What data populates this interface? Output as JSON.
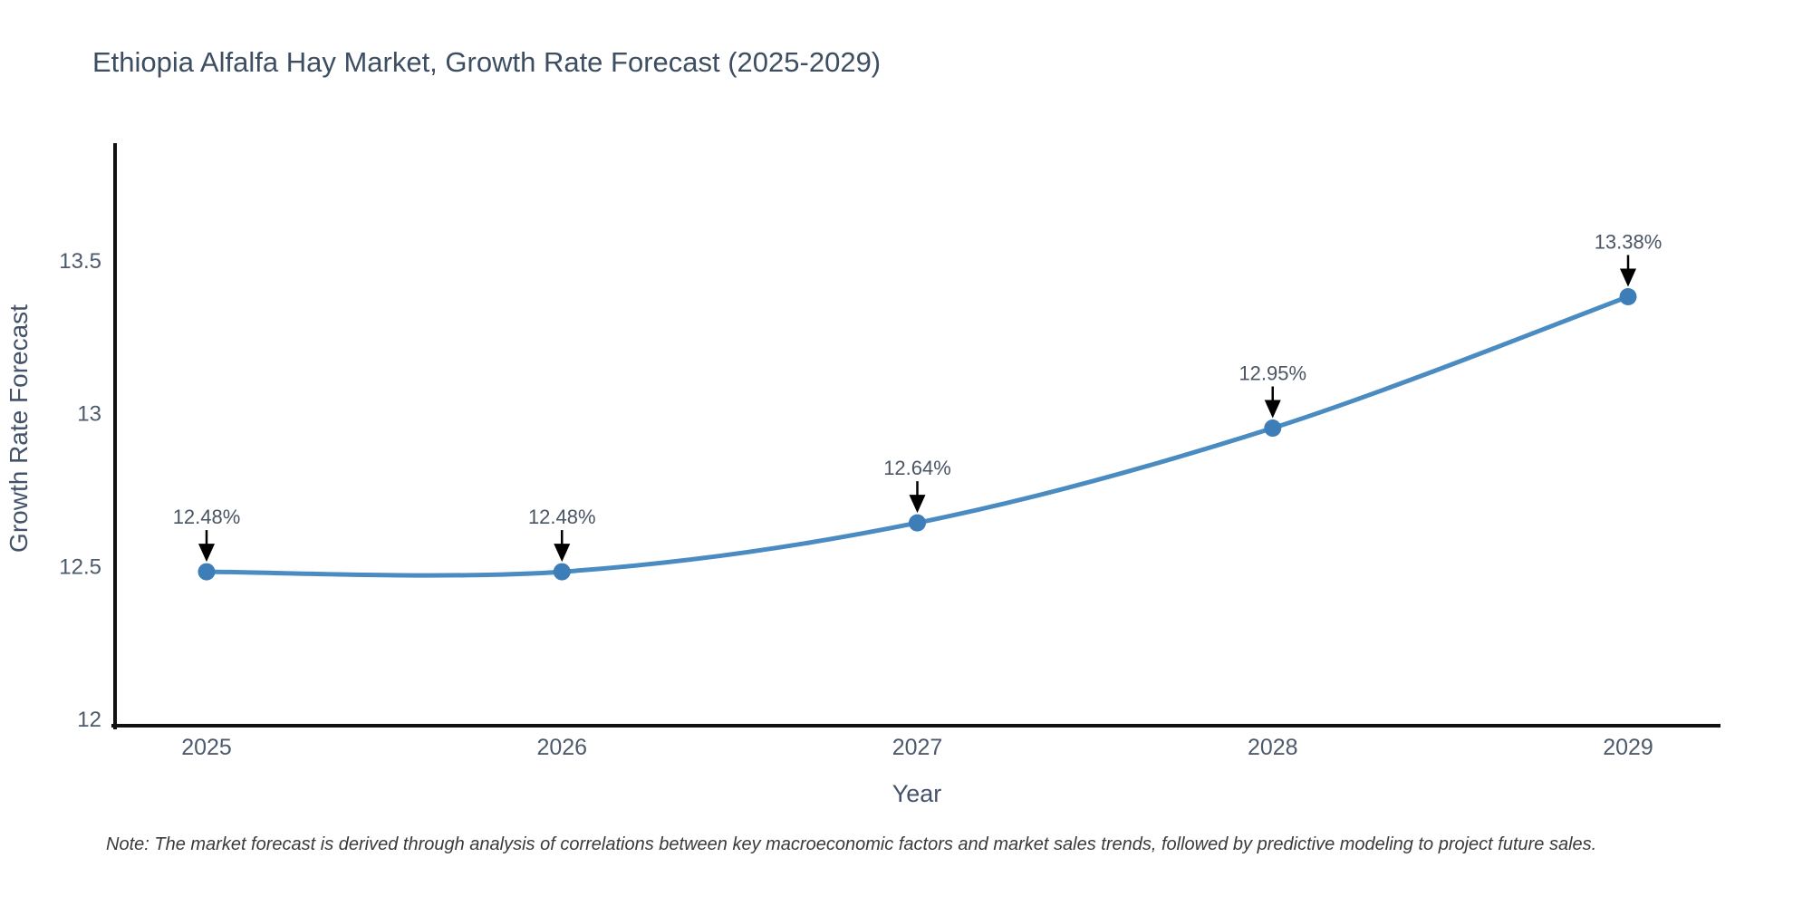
{
  "title": "Ethiopia Alfalfa Hay Market, Growth Rate Forecast (2025-2029)",
  "note": "Note: The market forecast is derived through analysis of correlations between key macroeconomic factors and market sales trends, followed by predictive modeling to project future sales.",
  "colors": {
    "background": "#ffffff",
    "line": "#4a8bc2",
    "marker": "#3d7eb8",
    "axis": "#111111",
    "title_text": "#3d4e63",
    "tick_text": "#4c5a6b",
    "axis_label_text": "#44536a",
    "annotation_text": "#4a5564",
    "annotation_arrow": "#000000",
    "note_text": "#3a3a3a"
  },
  "chart_data": {
    "type": "line",
    "title": "Ethiopia Alfalfa Hay Market, Growth Rate Forecast (2025-2029)",
    "xlabel": "Year",
    "ylabel": "Growth Rate Forecast",
    "x": [
      2025,
      2026,
      2027,
      2028,
      2029
    ],
    "values": [
      12.48,
      12.48,
      12.64,
      12.95,
      13.38
    ],
    "point_labels": [
      "12.48%",
      "12.48%",
      "12.64%",
      "12.95%",
      "13.38%"
    ],
    "xtick_labels": [
      "2025",
      "2026",
      "2027",
      "2028",
      "2029"
    ],
    "yticks": [
      12,
      12.5,
      13,
      13.5
    ],
    "ytick_labels": [
      "12",
      "12.5",
      "13",
      "13.5"
    ],
    "ylim": [
      11.97,
      13.9
    ],
    "xlim": [
      2024.74,
      2029.26
    ],
    "grid": false,
    "legend": false,
    "curve": "spline",
    "annotations": "value label with downward arrow above each data point"
  }
}
